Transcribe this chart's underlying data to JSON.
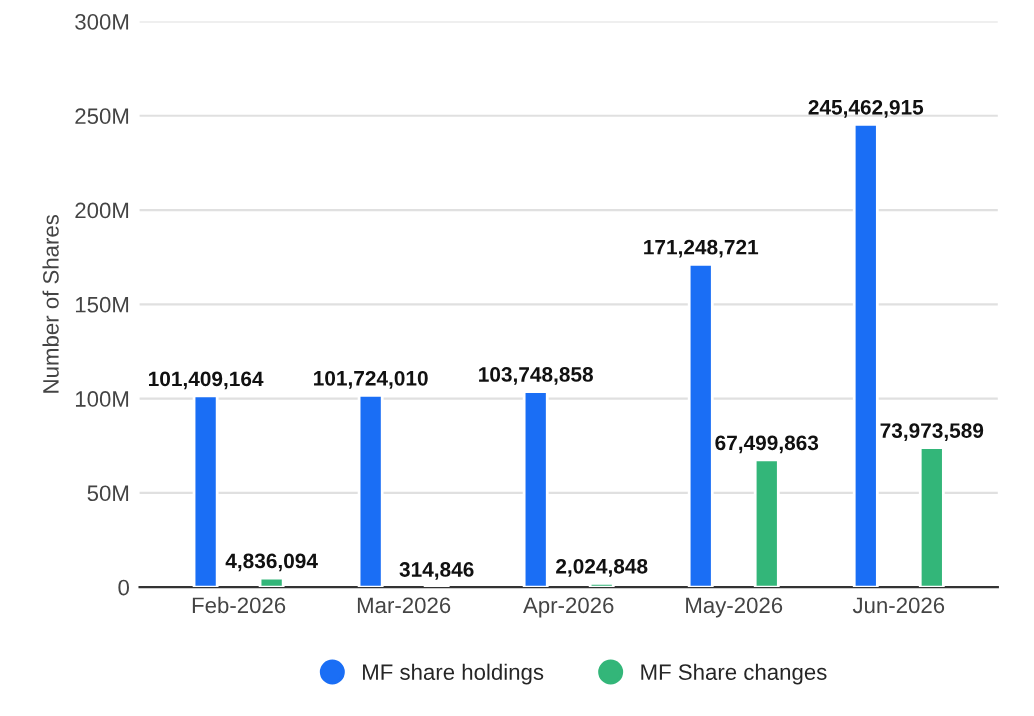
{
  "chart_data": {
    "type": "bar",
    "ylabel": "Number of Shares",
    "categories": [
      "Feb-2026",
      "Mar-2026",
      "Apr-2026",
      "May-2026",
      "Jun-2026"
    ],
    "series": [
      {
        "name": "MF share holdings",
        "color": "#1a6ef5",
        "values": [
          101409164,
          101724010,
          103748858,
          171248721,
          245462915
        ],
        "value_labels": [
          "101,409,164",
          "101,724,010",
          "103,748,858",
          "171,248,721",
          "245,462,915"
        ]
      },
      {
        "name": "MF Share changes",
        "color": "#33b679",
        "values": [
          4836094,
          314846,
          2024848,
          67499863,
          73973589
        ],
        "value_labels": [
          "4,836,094",
          "314,846",
          "2,024,848",
          "67,499,863",
          "73,973,589"
        ]
      }
    ],
    "ylim": [
      0,
      300000000
    ],
    "yticks": [
      {
        "value": 0,
        "label": "0"
      },
      {
        "value": 50000000,
        "label": "50M"
      },
      {
        "value": 100000000,
        "label": "100M"
      },
      {
        "value": 150000000,
        "label": "150M"
      },
      {
        "value": 200000000,
        "label": "200M"
      },
      {
        "value": 250000000,
        "label": "250M"
      },
      {
        "value": 300000000,
        "label": "300M"
      }
    ],
    "grid": "y",
    "legend": "bottom"
  }
}
